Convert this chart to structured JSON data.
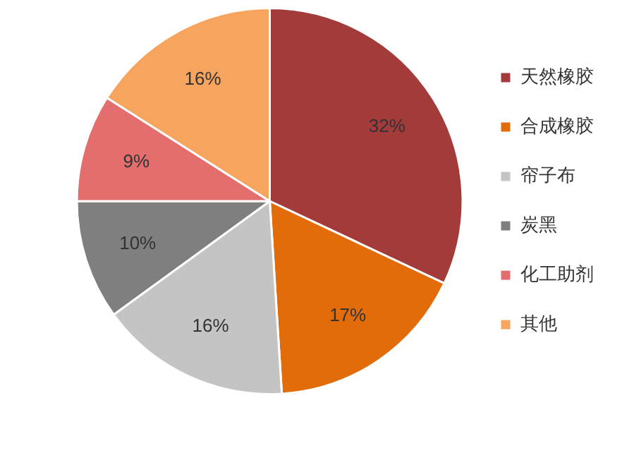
{
  "chart_data": {
    "type": "pie",
    "categories": [
      "天然橡胶",
      "合成橡胶",
      "帘子布",
      "炭黑",
      "化工助剂",
      "其他"
    ],
    "values": [
      32,
      17,
      16,
      10,
      9,
      16
    ],
    "value_labels": [
      "32%",
      "17%",
      "16%",
      "10%",
      "9%",
      "16%"
    ],
    "colors": [
      "#a33b3a",
      "#e36c0a",
      "#c4c4c4",
      "#7f7f7f",
      "#e46d6d",
      "#f6a45e"
    ],
    "legend": "right"
  }
}
